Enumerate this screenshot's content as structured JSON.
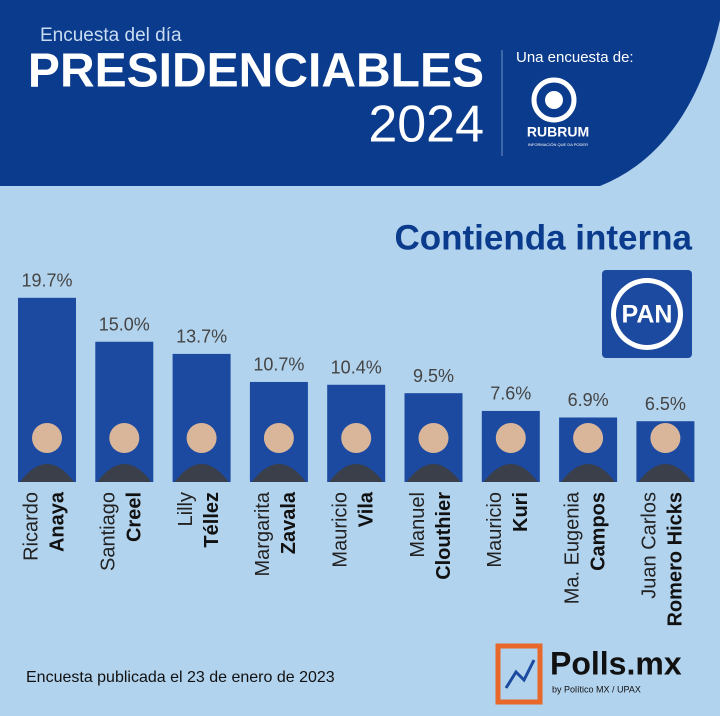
{
  "chart_data": {
    "type": "bar",
    "kicker": "Encuesta del día",
    "title": "PRESIDENCIABLES",
    "year": "2024",
    "source_intro": "Una encuesta de:",
    "source_name": "RUBRUM",
    "source_tagline": "INFORMACIÓN QUE DA PODER",
    "subtitle": "Contienda interna",
    "party": "PAN",
    "categories": [
      {
        "first": "Ricardo",
        "last": "Anaya"
      },
      {
        "first": "Santiago",
        "last": "Creel"
      },
      {
        "first": "Lilly",
        "last": "Téllez"
      },
      {
        "first": "Margarita",
        "last": "Zavala"
      },
      {
        "first": "Mauricio",
        "last": "Vila"
      },
      {
        "first": "Manuel",
        "last": "Clouthier"
      },
      {
        "first": "Mauricio",
        "last": "Kuri"
      },
      {
        "first": "Ma. Eugenia",
        "last": "Campos"
      },
      {
        "first": "Juan Carlos",
        "last": "Romero Hicks"
      }
    ],
    "values": [
      19.7,
      15.0,
      13.7,
      10.7,
      10.4,
      9.5,
      7.6,
      6.9,
      6.5
    ],
    "value_labels": [
      "19.7%",
      "15.0%",
      "13.7%",
      "10.7%",
      "10.4%",
      "9.5%",
      "7.6%",
      "6.9%",
      "6.5%"
    ],
    "color": "#1c4aa0",
    "footnote": "Encuesta publicada el 23 de enero de 2023",
    "brand": "Polls.mx",
    "brand_sub": "by Político MX / UPAX"
  }
}
